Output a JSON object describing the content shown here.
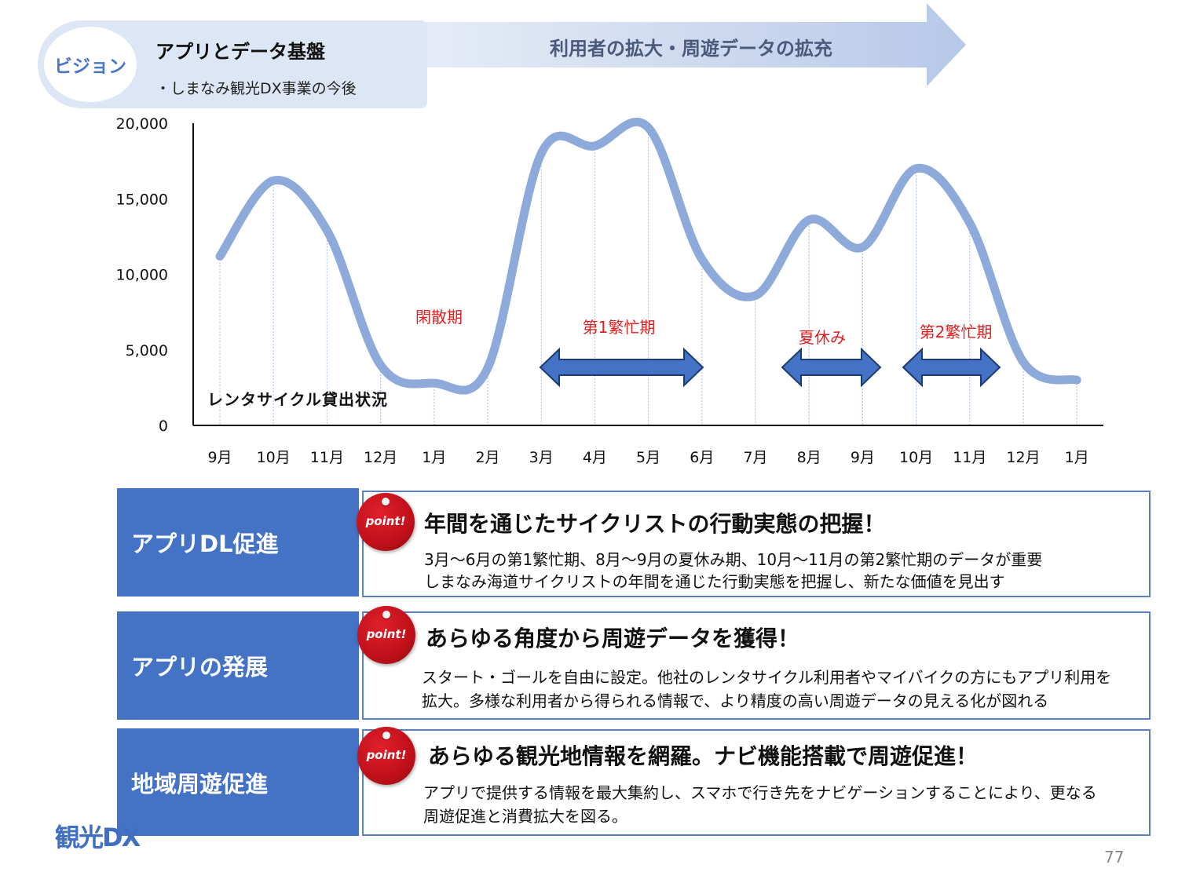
{
  "header": {
    "badge": "ビジョン",
    "title": "アプリとデータ基盤",
    "subtitle": "・しまなみ観光DX事業の今後",
    "arrow_text": "利用者の拡大・周遊データの拡充"
  },
  "chart_data": {
    "type": "line",
    "title": "レンタサイクル貸出状況",
    "xlabel": "",
    "ylabel": "",
    "categories": [
      "9月",
      "10月",
      "11月",
      "12月",
      "1月",
      "2月",
      "3月",
      "4月",
      "5月",
      "6月",
      "7月",
      "8月",
      "9月",
      "10月",
      "11月",
      "12月",
      "1月"
    ],
    "series": [
      {
        "values": [
          11200,
          16200,
          12900,
          4000,
          2800,
          3800,
          18000,
          18500,
          19700,
          11000,
          8600,
          13600,
          11800,
          17000,
          13400,
          4200,
          3000
        ]
      }
    ],
    "ylim": [
      0,
      20000
    ],
    "yticks": [
      "0",
      "5,000",
      "10,000",
      "15,000",
      "20,000"
    ],
    "grid": false,
    "color": "#8eaadb",
    "annotations": [
      {
        "text": "閑散期"
      },
      {
        "text": "第1繁忙期"
      },
      {
        "text": "夏休み"
      },
      {
        "text": "第2繁忙期"
      }
    ]
  },
  "rows": [
    {
      "left_label": "アプリDL促進",
      "badge": "point!",
      "heading": "年間を通じたサイクリストの行動実態の把握！",
      "lines": [
        "3月～6月の第1繁忙期、8月～9月の夏休み期、10月～11月の第2繁忙期のデータが重要",
        "しまなみ海道サイクリストの年間を通じた行動実態を把握し、新たな価値を見出す"
      ]
    },
    {
      "left_label": "アプリの発展",
      "badge": "point!",
      "heading": "あらゆる角度から周遊データを獲得！",
      "lines": [
        "スタート・ゴールを自由に設定。他社のレンタサイクル利用者やマイバイクの方にもアプリ利用を",
        "拡大。多様な利用者から得られる情報で、より精度の高い周遊データの見える化が図れる"
      ]
    },
    {
      "left_label": "地域周遊促進",
      "badge": "point!",
      "heading": "あらゆる観光地情報を網羅。ナビ機能搭載で周遊促進！",
      "lines": [
        "アプリで提供する情報を最大集約し、スマホで行き先をナビゲーションすることにより、更なる",
        "周遊促進と消費拡大を図る。"
      ]
    }
  ],
  "footer": {
    "logo": "観光DX",
    "page_number": "77"
  }
}
